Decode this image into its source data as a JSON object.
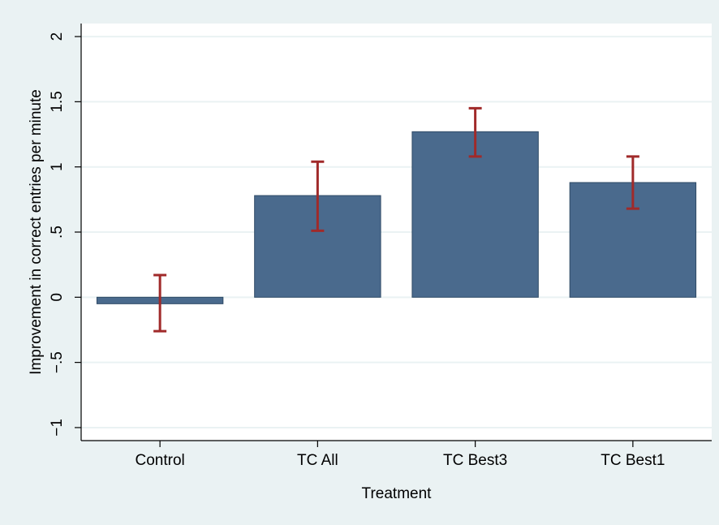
{
  "chart_data": {
    "type": "bar",
    "title": "",
    "xlabel": "Treatment",
    "ylabel": "Improvement in correct entries per minute",
    "categories": [
      "Control",
      "TC All",
      "TC Best3",
      "TC Best1"
    ],
    "values": [
      -0.05,
      0.78,
      1.27,
      0.88
    ],
    "error_low": [
      -0.26,
      0.51,
      1.08,
      0.68
    ],
    "error_high": [
      0.17,
      1.04,
      1.45,
      1.08
    ],
    "ylim": [
      -1.1,
      2.1
    ],
    "yticks": [
      -1,
      -0.5,
      0,
      0.5,
      1,
      1.5,
      2
    ],
    "ytick_labels": [
      "−1",
      "−.5",
      "0",
      ".5",
      "1",
      "1.5",
      "2"
    ],
    "grid": true,
    "legend": "none",
    "colors": {
      "outer_background": "#eaf2f3",
      "plot_background": "#ffffff",
      "bar_fill": "#4a6a8d",
      "bar_stroke": "#2f4a66",
      "error_bar": "#a02a2a",
      "grid": "#eaf2f3",
      "axis": "#000000"
    }
  }
}
